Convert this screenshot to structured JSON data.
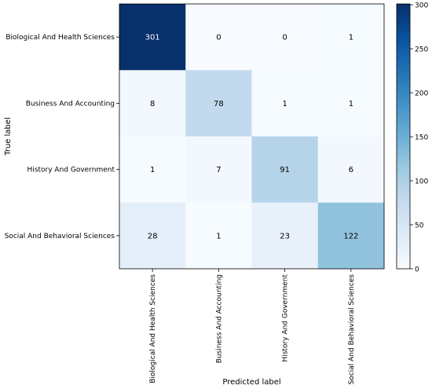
{
  "chart_data": {
    "type": "heatmap",
    "title": "",
    "xlabel": "Predicted label",
    "ylabel": "True label",
    "row_labels": [
      "Biological And Health Sciences",
      "Business And Accounting",
      "History And Government",
      "Social And Behavioral Sciences"
    ],
    "col_labels": [
      "Biological And Health Sciences",
      "Business And Accounting",
      "History And Government",
      "Social And Behavioral Sciences"
    ],
    "values": [
      [
        301,
        0,
        0,
        1
      ],
      [
        8,
        78,
        1,
        1
      ],
      [
        1,
        7,
        91,
        6
      ],
      [
        28,
        1,
        23,
        122
      ]
    ],
    "colorbar": {
      "range": [
        0,
        301
      ],
      "ticks": [
        0,
        50,
        100,
        150,
        200,
        250,
        300
      ],
      "colormap": "Blues"
    },
    "grid": false
  }
}
